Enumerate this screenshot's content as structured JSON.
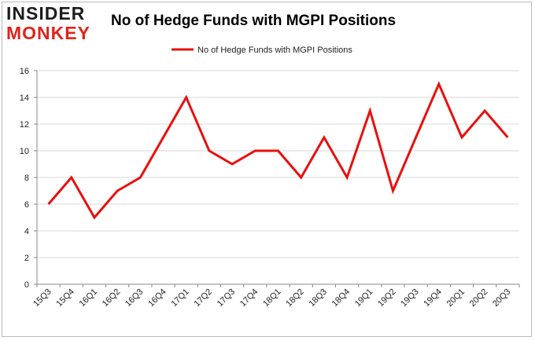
{
  "brand": {
    "top": "INSIDER",
    "bottom": "MONKEY"
  },
  "chart_data": {
    "type": "line",
    "title": "No of Hedge Funds with MGPI Positions",
    "xlabel": "",
    "ylabel": "",
    "categories": [
      "15Q3",
      "15Q4",
      "16Q1",
      "16Q2",
      "16Q3",
      "16Q4",
      "17Q1",
      "17Q2",
      "17Q3",
      "17Q4",
      "18Q1",
      "18Q2",
      "18Q3",
      "18Q4",
      "19Q1",
      "19Q2",
      "19Q3",
      "19Q4",
      "20Q1",
      "20Q2",
      "20Q3"
    ],
    "series": [
      {
        "name": "No of Hedge Funds with MGPI Positions",
        "values": [
          6,
          8,
          5,
          7,
          8,
          11,
          14,
          10,
          9,
          10,
          10,
          8,
          11,
          8,
          13,
          7,
          11,
          15,
          11,
          13,
          11
        ]
      }
    ],
    "ylim": [
      0,
      16
    ],
    "yticks": [
      0,
      2,
      4,
      6,
      8,
      10,
      12,
      14,
      16
    ],
    "grid": true,
    "legend": "top-center",
    "colors": {
      "line": "#e8100e",
      "grid": "#d9d9d9",
      "axis": "#888888"
    }
  }
}
